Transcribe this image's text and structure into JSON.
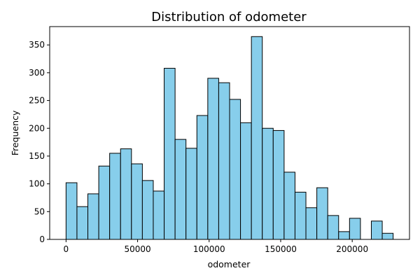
{
  "chart_data": {
    "type": "bar",
    "title": "Distribution of odometer",
    "xlabel": "odometer",
    "ylabel": "Frequency",
    "bar_color": "#87ceeb",
    "edge_color": "#000000",
    "bin_width": 7620,
    "xlim": [
      -11430,
      240030
    ],
    "ylim": [
      0,
      383
    ],
    "x_ticks": [
      0,
      50000,
      100000,
      150000,
      200000
    ],
    "x_tick_labels": [
      "0",
      "50000",
      "100000",
      "150000",
      "200000"
    ],
    "y_ticks": [
      0,
      50,
      100,
      150,
      200,
      250,
      300,
      350
    ],
    "y_tick_labels": [
      "0",
      "50",
      "100",
      "150",
      "200",
      "250",
      "300",
      "350"
    ],
    "bins": [
      {
        "x0": 0,
        "count": 102
      },
      {
        "x0": 7620,
        "count": 59
      },
      {
        "x0": 15240,
        "count": 82
      },
      {
        "x0": 22860,
        "count": 132
      },
      {
        "x0": 30480,
        "count": 155
      },
      {
        "x0": 38100,
        "count": 163
      },
      {
        "x0": 45720,
        "count": 136
      },
      {
        "x0": 53340,
        "count": 106
      },
      {
        "x0": 60960,
        "count": 87
      },
      {
        "x0": 68580,
        "count": 308
      },
      {
        "x0": 76200,
        "count": 180
      },
      {
        "x0": 83820,
        "count": 164
      },
      {
        "x0": 91440,
        "count": 223
      },
      {
        "x0": 99060,
        "count": 290
      },
      {
        "x0": 106680,
        "count": 282
      },
      {
        "x0": 114300,
        "count": 252
      },
      {
        "x0": 121920,
        "count": 210
      },
      {
        "x0": 129540,
        "count": 365
      },
      {
        "x0": 137160,
        "count": 200
      },
      {
        "x0": 144780,
        "count": 196
      },
      {
        "x0": 152400,
        "count": 121
      },
      {
        "x0": 160020,
        "count": 85
      },
      {
        "x0": 167640,
        "count": 57
      },
      {
        "x0": 175260,
        "count": 93
      },
      {
        "x0": 182880,
        "count": 43
      },
      {
        "x0": 190500,
        "count": 14
      },
      {
        "x0": 198120,
        "count": 38
      },
      {
        "x0": 205740,
        "count": 0
      },
      {
        "x0": 213360,
        "count": 33
      },
      {
        "x0": 220980,
        "count": 11
      }
    ]
  }
}
